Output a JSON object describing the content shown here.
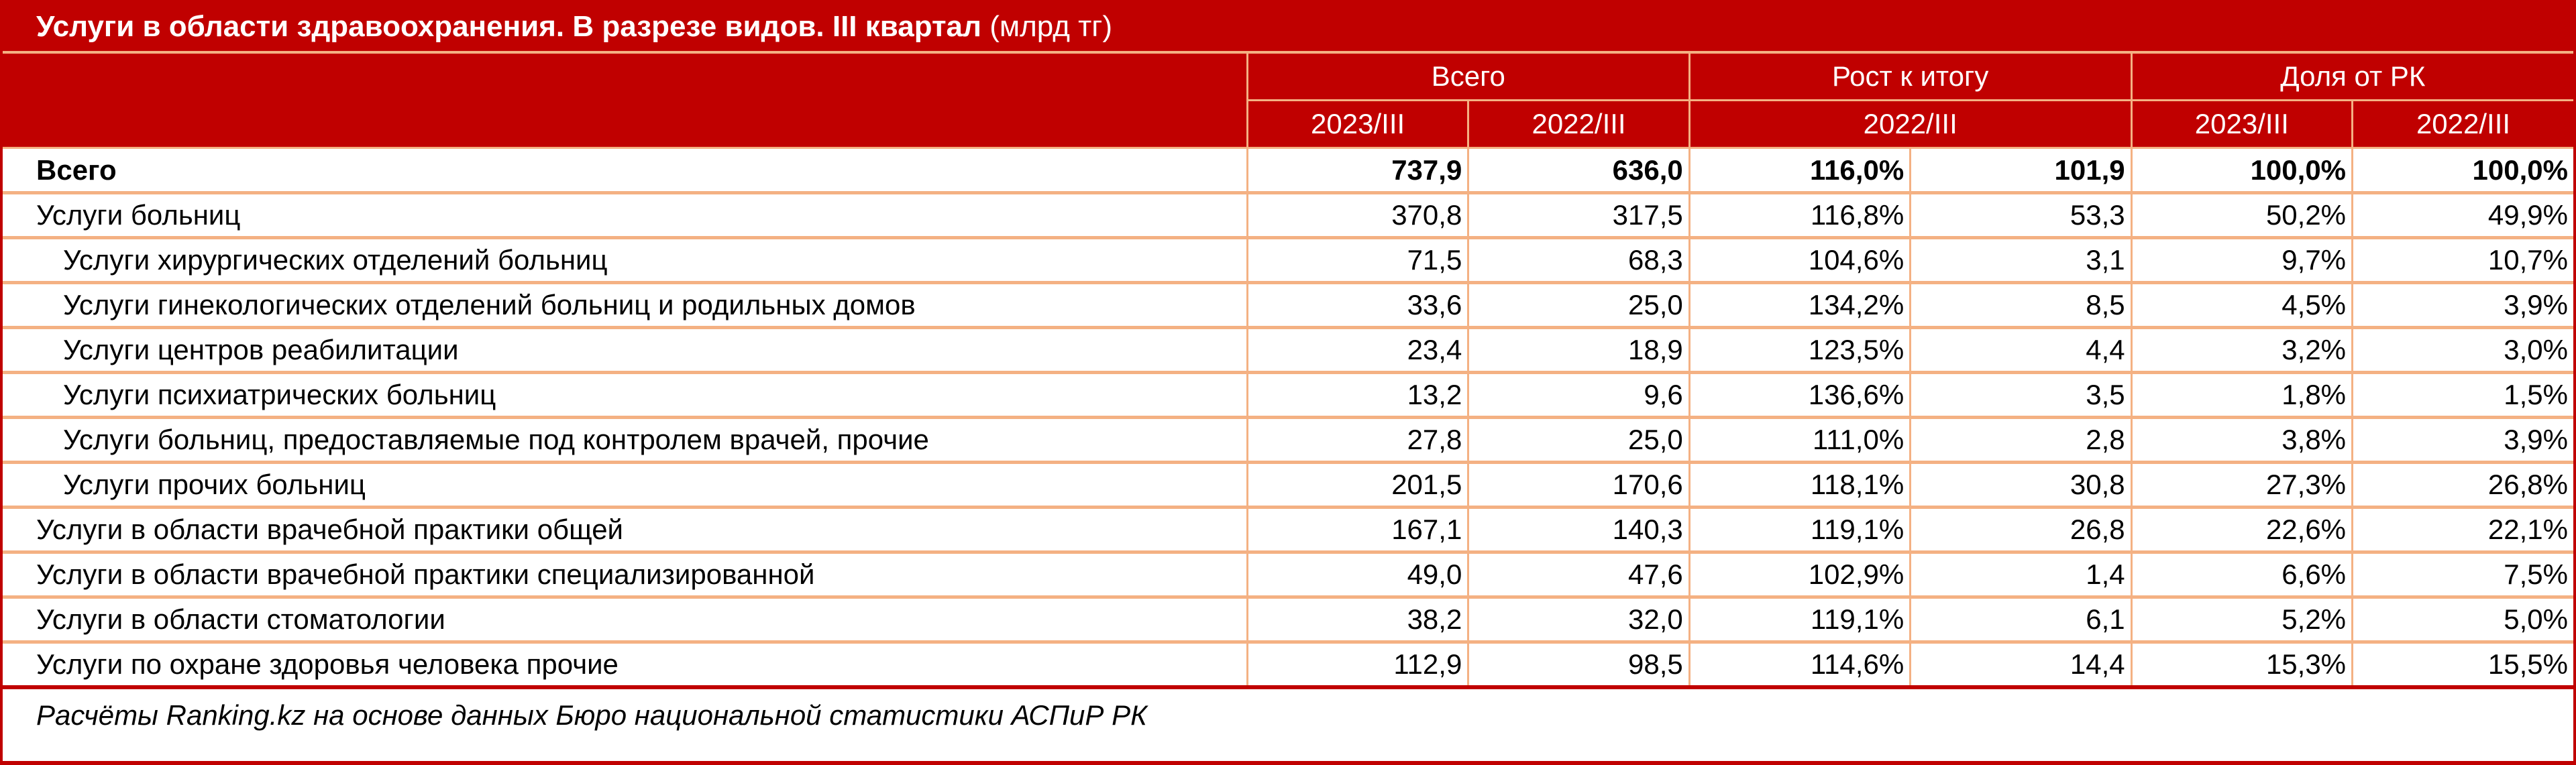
{
  "title": {
    "main": "Услуги в области здравоохранения. В разрезе видов. III квартал",
    "unit": "(млрд тг)"
  },
  "header": {
    "groups": [
      {
        "label": "Всего",
        "span": 2
      },
      {
        "label": "Рост к итогу",
        "span": 2
      },
      {
        "label": "Доля от РК",
        "span": 2
      }
    ],
    "subheaders": [
      {
        "label": "2023/III",
        "span": 1
      },
      {
        "label": "2022/III",
        "span": 1
      },
      {
        "label": "2022/III",
        "span": 2
      },
      {
        "label": "2023/III",
        "span": 1
      },
      {
        "label": "2022/III",
        "span": 1
      }
    ]
  },
  "rows": [
    {
      "label": "Всего",
      "level": 0,
      "bold": true,
      "values": [
        "737,9",
        "636,0",
        "116,0%",
        "101,9",
        "100,0%",
        "100,0%"
      ]
    },
    {
      "label": "Услуги больниц",
      "level": 0,
      "values": [
        "370,8",
        "317,5",
        "116,8%",
        "53,3",
        "50,2%",
        "49,9%"
      ]
    },
    {
      "label": "Услуги хирургических отделений больниц",
      "level": 1,
      "values": [
        "71,5",
        "68,3",
        "104,6%",
        "3,1",
        "9,7%",
        "10,7%"
      ]
    },
    {
      "label": "Услуги гинекологических отделений больниц и родильных домов",
      "level": 1,
      "values": [
        "33,6",
        "25,0",
        "134,2%",
        "8,5",
        "4,5%",
        "3,9%"
      ]
    },
    {
      "label": "Услуги центров реабилитации",
      "level": 1,
      "values": [
        "23,4",
        "18,9",
        "123,5%",
        "4,4",
        "3,2%",
        "3,0%"
      ]
    },
    {
      "label": "Услуги психиатрических больниц",
      "level": 1,
      "values": [
        "13,2",
        "9,6",
        "136,6%",
        "3,5",
        "1,8%",
        "1,5%"
      ]
    },
    {
      "label": "Услуги больниц, предоставляемые под контролем врачей, прочие",
      "level": 1,
      "values": [
        "27,8",
        "25,0",
        "111,0%",
        "2,8",
        "3,8%",
        "3,9%"
      ]
    },
    {
      "label": "Услуги прочих больниц",
      "level": 1,
      "values": [
        "201,5",
        "170,6",
        "118,1%",
        "30,8",
        "27,3%",
        "26,8%"
      ]
    },
    {
      "label": "Услуги в области врачебной практики общей",
      "level": 0,
      "values": [
        "167,1",
        "140,3",
        "119,1%",
        "26,8",
        "22,6%",
        "22,1%"
      ]
    },
    {
      "label": "Услуги в области врачебной практики специализированной",
      "level": 0,
      "values": [
        "49,0",
        "47,6",
        "102,9%",
        "1,4",
        "6,6%",
        "7,5%"
      ]
    },
    {
      "label": "Услуги в области стоматологии",
      "level": 0,
      "values": [
        "38,2",
        "32,0",
        "119,1%",
        "6,1",
        "5,2%",
        "5,0%"
      ]
    },
    {
      "label": "Услуги по охране здоровья человека прочие",
      "level": 0,
      "values": [
        "112,9",
        "98,5",
        "114,6%",
        "14,4",
        "15,3%",
        "15,5%"
      ]
    }
  ],
  "footer": "Расчёты Ranking.kz на основе данных Бюро национальной статистики АСПиР РК",
  "colors": {
    "header_bg": "#c00000",
    "header_text": "#ffffff",
    "grid_line": "#f4b183"
  }
}
